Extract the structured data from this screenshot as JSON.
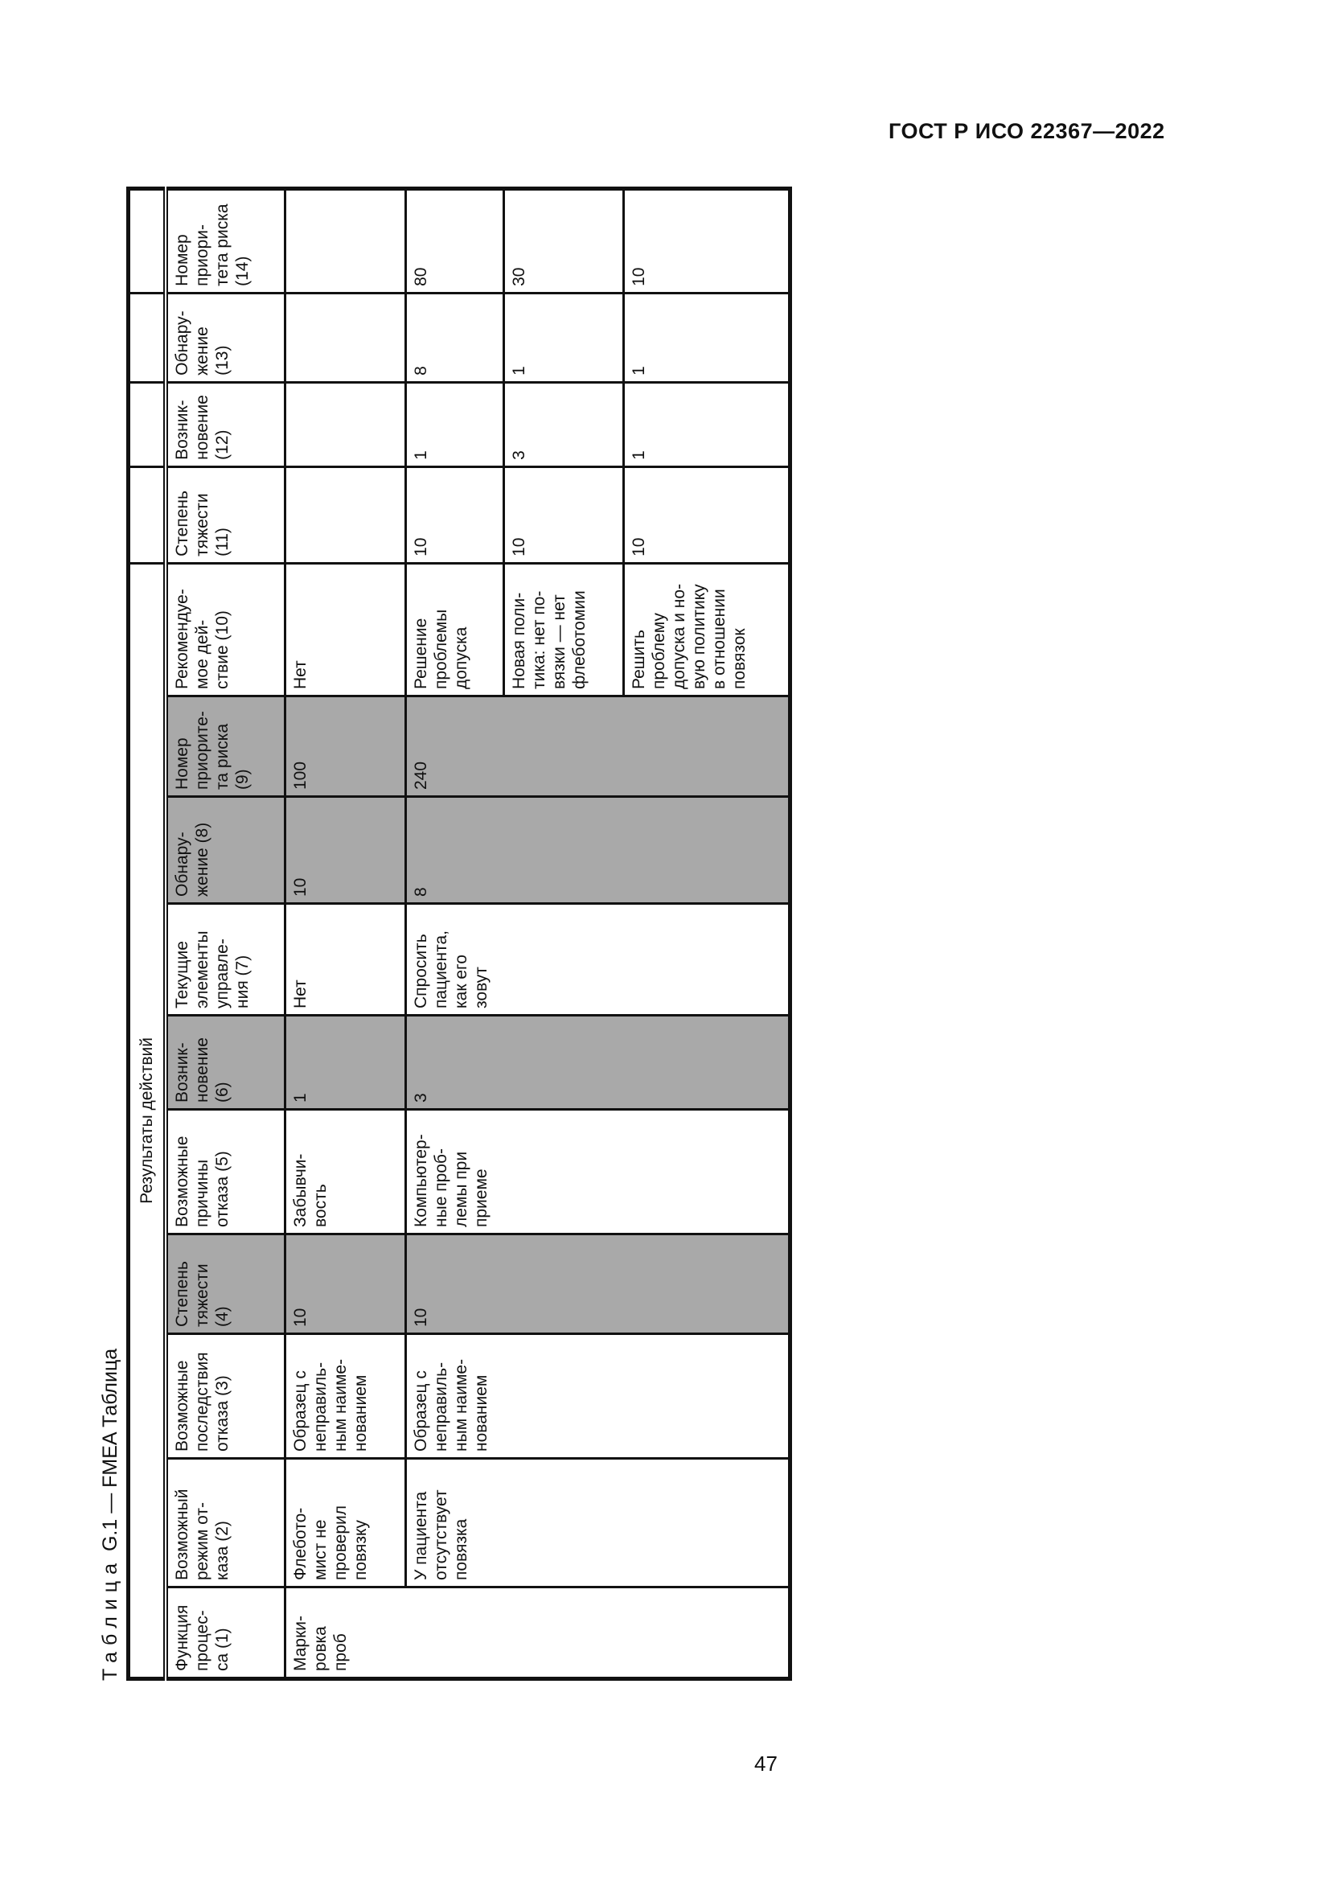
{
  "page": {
    "header": "ГОСТ Р ИСО 22367—2022",
    "page_number": "47"
  },
  "title": {
    "word": "Таблица",
    "rest": " G.1 — FMEA Таблица"
  },
  "colors": {
    "shaded_cell": "#a9a9a9",
    "line": "#111111"
  },
  "table": {
    "group_header": "Результаты действий",
    "columns": [
      {
        "label": "Функция\nпроцес-\nса (1)",
        "gray": false
      },
      {
        "label": "Возможный\nрежим от-\nказа (2)",
        "gray": false
      },
      {
        "label": "Возможные\nпоследствия\nотказа (3)",
        "gray": false
      },
      {
        "label": "Степень\nтяжести\n(4)",
        "gray": true
      },
      {
        "label": "Возможные\nпричины\nотказа (5)",
        "gray": false
      },
      {
        "label": "Возник-\nновение\n(6)",
        "gray": true
      },
      {
        "label": "Текущие\nэлементы\nуправле-\nния (7)",
        "gray": false
      },
      {
        "label": "Обнару-\nжение (8)",
        "gray": true
      },
      {
        "label": "Номер\nприорите-\nта риска\n(9)",
        "gray": true
      },
      {
        "label": "Рекомендуе-\nмое дей-\nствие (10)",
        "gray": false
      },
      {
        "label": "Степень\nтяжести\n(11)",
        "gray": false
      },
      {
        "label": "Возник-\nновение\n(12)",
        "gray": false
      },
      {
        "label": "Обнару-\nжение\n(13)",
        "gray": false
      },
      {
        "label": "Номер\nприори-\nтета риска\n(14)",
        "gray": false
      }
    ],
    "rows": [
      {
        "cells": [
          {
            "text": "Марки-\nровка\nпроб",
            "rowspan": 4
          },
          {
            "text": "Флебото-\nмист не\nпроверил\nповязку"
          },
          {
            "text": "Образец с\nнеправиль-\nным наиме-\nнованием"
          },
          {
            "text": "10",
            "gray": true
          },
          {
            "text": "Забывчи-\nвость"
          },
          {
            "text": "1",
            "gray": true
          },
          {
            "text": "Нет"
          },
          {
            "text": "10",
            "gray": true
          },
          {
            "text": "100",
            "gray": true
          },
          {
            "text": "Нет"
          },
          {
            "text": ""
          },
          {
            "text": ""
          },
          {
            "text": ""
          },
          {
            "text": ""
          }
        ]
      },
      {
        "cells": [
          {
            "text": "У пациента\nотсутствует\nповязка",
            "rowspan": 3
          },
          {
            "text": "Образец с\nнеправиль-\nным наиме-\nнованием",
            "rowspan": 3
          },
          {
            "text": "10",
            "gray": true,
            "rowspan": 3
          },
          {
            "text": "Компьютер-\nные проб-\nлемы при\nприеме",
            "rowspan": 3
          },
          {
            "text": "3",
            "gray": true,
            "rowspan": 3
          },
          {
            "text": "Спросить\nпациента,\nкак его\nзовут",
            "rowspan": 3
          },
          {
            "text": "8",
            "gray": true,
            "rowspan": 3
          },
          {
            "text": "240",
            "gray": true,
            "rowspan": 3
          },
          {
            "text": "Решение\nпроблемы\nдопуска"
          },
          {
            "text": "10"
          },
          {
            "text": "1"
          },
          {
            "text": "8"
          },
          {
            "text": "80"
          }
        ]
      },
      {
        "cells": [
          {
            "text": "Новая поли-\nтика: нет по-\nвязки — нет\nфлеботомии"
          },
          {
            "text": "10"
          },
          {
            "text": "3"
          },
          {
            "text": "1"
          },
          {
            "text": "30"
          }
        ]
      },
      {
        "cells": [
          {
            "text": "Решить\nпроблему\nдопуска и но-\nвую политику\nв отношении\nповязок"
          },
          {
            "text": "10"
          },
          {
            "text": "1"
          },
          {
            "text": "1"
          },
          {
            "text": "10"
          }
        ]
      }
    ]
  }
}
